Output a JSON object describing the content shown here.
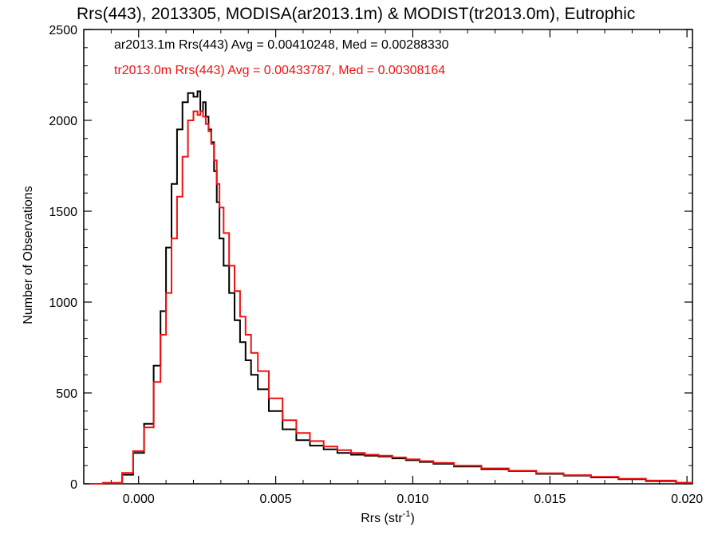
{
  "chart_data": {
    "type": "line",
    "title": "Rrs(443), 2013305, MODISA(ar2013.1m) & MODIST(tr2013.0m), Eutrophic",
    "xlabel": "Rrs (str",
    "xlabel_sup": "-1",
    "xlabel_close": ")",
    "ylabel": "Number of Observations",
    "xlim": [
      -0.002,
      0.0202
    ],
    "ylim": [
      0,
      2500
    ],
    "x_ticks": [
      0.0,
      0.005,
      0.01,
      0.015,
      0.02
    ],
    "x_tick_labels": [
      "0.000",
      "0.005",
      "0.010",
      "0.015",
      "0.020"
    ],
    "y_ticks": [
      0,
      500,
      1000,
      1500,
      2000,
      2500
    ],
    "y_tick_labels": [
      "0",
      "500",
      "1000",
      "1500",
      "2000",
      "2500"
    ],
    "grid": false,
    "legend_placement": "top-left",
    "series": [
      {
        "name": "ar2013.1m Rrs(443) Avg = 0.00410248, Med = 0.00288330",
        "color": "#000000",
        "x": [
          -0.0018,
          -0.0008,
          -0.0004,
          0.0,
          0.0004,
          0.0007,
          0.0009,
          0.0011,
          0.0013,
          0.0015,
          0.0017,
          0.0019,
          0.0021,
          0.0022,
          0.0023,
          0.0024,
          0.0025,
          0.0026,
          0.0027,
          0.0028,
          0.0029,
          0.003,
          0.0032,
          0.0034,
          0.0036,
          0.0038,
          0.004,
          0.0042,
          0.0045,
          0.005,
          0.0055,
          0.006,
          0.0065,
          0.007,
          0.0075,
          0.008,
          0.0085,
          0.009,
          0.0095,
          0.01,
          0.0105,
          0.011,
          0.012,
          0.013,
          0.014,
          0.015,
          0.016,
          0.017,
          0.018,
          0.019,
          0.0202
        ],
        "y": [
          0,
          5,
          50,
          170,
          330,
          650,
          950,
          1300,
          1650,
          1950,
          2100,
          2150,
          2130,
          2160,
          2050,
          2100,
          2020,
          1950,
          1880,
          1720,
          1550,
          1350,
          1200,
          1050,
          900,
          780,
          680,
          600,
          520,
          400,
          300,
          240,
          210,
          190,
          170,
          160,
          155,
          150,
          140,
          130,
          120,
          110,
          95,
          80,
          70,
          55,
          45,
          35,
          25,
          15,
          5
        ]
      },
      {
        "name": "tr2013.0m Rrs(443) Avg = 0.00433787, Med = 0.00308164",
        "color": "#ee1111",
        "x": [
          -0.0018,
          -0.0008,
          -0.0004,
          0.0,
          0.0004,
          0.0007,
          0.0009,
          0.0011,
          0.0013,
          0.0015,
          0.0017,
          0.0019,
          0.0021,
          0.0022,
          0.0023,
          0.0024,
          0.0025,
          0.0026,
          0.0027,
          0.0028,
          0.0029,
          0.003,
          0.0032,
          0.0034,
          0.0036,
          0.0038,
          0.004,
          0.0042,
          0.0045,
          0.005,
          0.0055,
          0.006,
          0.0065,
          0.007,
          0.0075,
          0.008,
          0.0085,
          0.009,
          0.0095,
          0.01,
          0.0105,
          0.011,
          0.012,
          0.013,
          0.014,
          0.015,
          0.016,
          0.017,
          0.018,
          0.019,
          0.0202
        ],
        "y": [
          0,
          5,
          60,
          180,
          310,
          560,
          820,
          1050,
          1350,
          1580,
          1800,
          2000,
          2050,
          2030,
          2050,
          2020,
          1980,
          1940,
          1870,
          1780,
          1650,
          1520,
          1380,
          1200,
          1060,
          920,
          820,
          720,
          620,
          470,
          350,
          280,
          235,
          205,
          185,
          170,
          160,
          155,
          145,
          135,
          125,
          115,
          100,
          85,
          72,
          58,
          48,
          38,
          28,
          18,
          6
        ]
      }
    ]
  }
}
